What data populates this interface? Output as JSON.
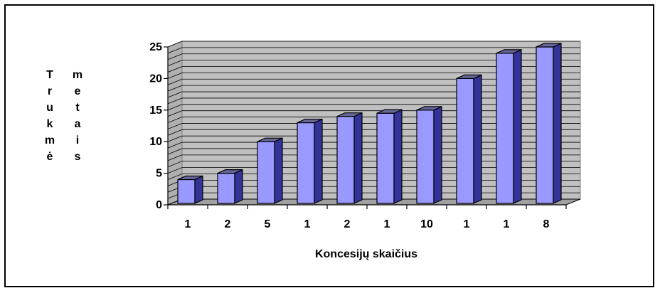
{
  "chart_data": {
    "type": "bar",
    "style": "3d-column",
    "categories": [
      "1",
      "2",
      "5",
      "1",
      "2",
      "1",
      "10",
      "1",
      "1",
      "8"
    ],
    "values": [
      4,
      5,
      10,
      13,
      14,
      14.5,
      15,
      20,
      24,
      25
    ],
    "title": "",
    "xlabel": "Koncesijų skaičius",
    "ylabel_column_1": [
      "T",
      "r",
      "u",
      "k",
      "m",
      "ė"
    ],
    "ylabel_column_2": [
      "m",
      "e",
      "t",
      "a",
      "i",
      "s"
    ],
    "ylim": [
      0,
      25
    ],
    "yticks": [
      "0",
      "5",
      "10",
      "15",
      "20",
      "25"
    ],
    "grid": true,
    "legend": "none"
  },
  "colors": {
    "bar_front": "#9999ff",
    "bar_side": "#333399",
    "bar_top": "#666699",
    "plot_back": "#c0c0c0",
    "gridline": "#000000"
  }
}
